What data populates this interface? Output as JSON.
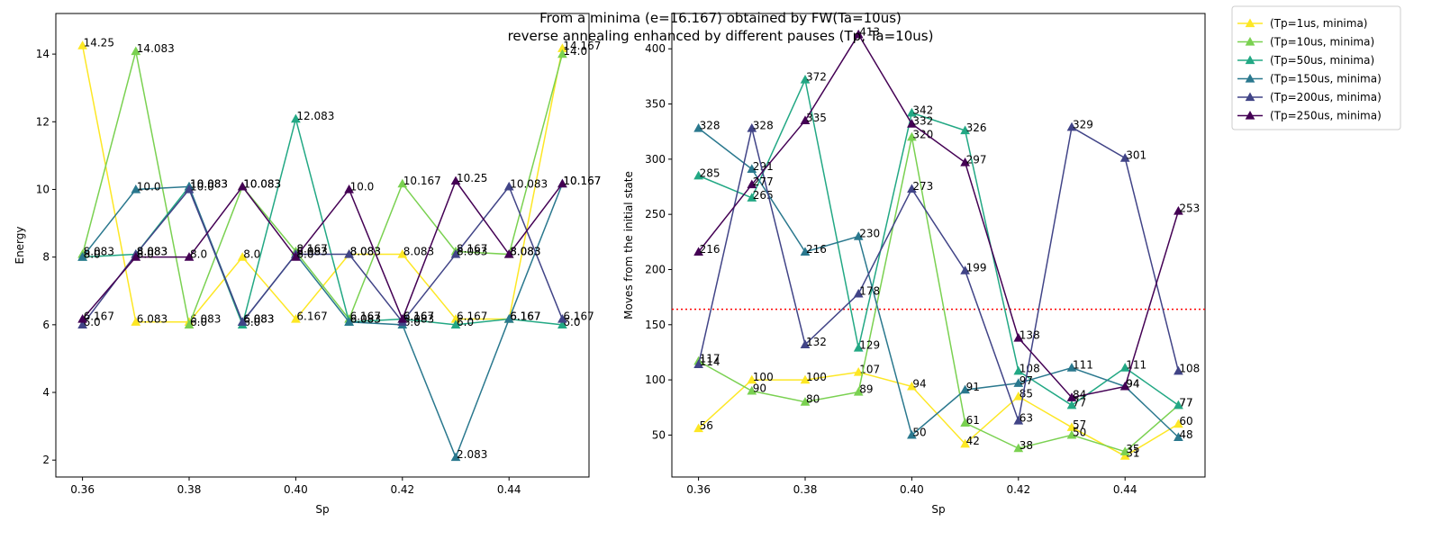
{
  "suptitle": {
    "line1": "From a minima (e=16.167) obtained by FW(Ta=10us)",
    "line2": "reverse annealing enhanced by different pauses (Tp, Ta=10us)"
  },
  "colors": [
    "#fde725",
    "#7ad151",
    "#22a884",
    "#2a788e",
    "#414487",
    "#440154"
  ],
  "reference_line": {
    "y": 164,
    "color": "#ff0000",
    "style": "dotted"
  },
  "chart_data": [
    {
      "type": "line",
      "xlabel": "Sp",
      "ylabel": "Energy",
      "x": [
        0.36,
        0.37,
        0.38,
        0.39,
        0.4,
        0.41,
        0.42,
        0.43,
        0.44,
        0.45
      ],
      "xlim": [
        0.355,
        0.455
      ],
      "ylim": [
        1.5,
        15.2
      ],
      "xticks": [
        "0.36",
        "0.38",
        "0.40",
        "0.42",
        "0.44"
      ],
      "yticks": [
        "2",
        "4",
        "6",
        "8",
        "10",
        "12",
        "14"
      ],
      "series": [
        {
          "name": "(Tp=1us, minima)",
          "values": [
            14.25,
            6.083,
            6.083,
            8.0,
            6.167,
            8.083,
            8.083,
            6.167,
            6.167,
            14.167
          ],
          "labels": [
            "14.25",
            "6.083",
            "6.083",
            "8.0",
            "6.167",
            "8.083",
            "8.083",
            "6.167",
            "6.167",
            "14.167"
          ]
        },
        {
          "name": "(Tp=10us, minima)",
          "values": [
            8.083,
            14.083,
            6.0,
            10.083,
            8.167,
            6.167,
            10.167,
            8.167,
            8.083,
            14.0
          ],
          "labels": [
            "8.083",
            "14.083",
            "6.0",
            "10.083",
            "8.167",
            "6.167",
            "10.167",
            "8.167",
            "8.083",
            "14.0"
          ]
        },
        {
          "name": "(Tp=50us, minima)",
          "values": [
            8.0,
            8.083,
            10.083,
            6.0,
            12.083,
            6.083,
            6.167,
            6.0,
            6.167,
            6.0
          ],
          "labels": [
            "8.0",
            "8.083",
            "10.083",
            "6.0",
            "12.083",
            "6.083",
            "6.167",
            "6.0",
            "6.167",
            "6.0"
          ]
        },
        {
          "name": "(Tp=150us, minima)",
          "values": [
            8.0,
            10.0,
            10.083,
            6.083,
            8.083,
            6.083,
            6.0,
            2.083,
            6.167,
            10.167
          ],
          "labels": [
            "8.0",
            "10.0",
            "10.083",
            "6.083",
            "8.083",
            "6.083",
            "6.0",
            "2.083",
            "6.167",
            "10.167"
          ]
        },
        {
          "name": "(Tp=200us, minima)",
          "values": [
            6.0,
            8.083,
            10.0,
            6.083,
            8.083,
            8.083,
            6.083,
            8.083,
            10.083,
            6.167
          ],
          "labels": [
            "6.0",
            "8.083",
            "10.0",
            "6.083",
            "8.083",
            "8.083",
            "6.083",
            "8.083",
            "10.083",
            "6.167"
          ]
        },
        {
          "name": "(Tp=250us, minima)",
          "values": [
            6.167,
            8.0,
            8.0,
            10.083,
            8.0,
            10.0,
            6.167,
            10.25,
            8.083,
            10.167
          ],
          "labels": [
            "6.167",
            "8.0",
            "8.0",
            "10.083",
            "8.0",
            "10.0",
            "6.167",
            "10.25",
            "8.083",
            "10.167"
          ]
        }
      ]
    },
    {
      "type": "line",
      "xlabel": "Sp",
      "ylabel": "Moves from the initial state",
      "x": [
        0.36,
        0.37,
        0.38,
        0.39,
        0.4,
        0.41,
        0.42,
        0.43,
        0.44,
        0.45
      ],
      "xlim": [
        0.355,
        0.455
      ],
      "ylim": [
        12,
        432
      ],
      "xticks": [
        "0.36",
        "0.38",
        "0.40",
        "0.42",
        "0.44"
      ],
      "yticks": [
        "50",
        "100",
        "150",
        "200",
        "250",
        "300",
        "350",
        "400"
      ],
      "series": [
        {
          "name": "(Tp=1us, minima)",
          "values": [
            56,
            100,
            100,
            107,
            94,
            42,
            85,
            57,
            31,
            60
          ],
          "labels": [
            "56",
            "100",
            "100",
            "107",
            "94",
            "42",
            "85",
            "57",
            "31",
            "60"
          ]
        },
        {
          "name": "(Tp=10us, minima)",
          "values": [
            117,
            90,
            80,
            89,
            320,
            61,
            38,
            50,
            35,
            77
          ],
          "labels": [
            "117",
            "90",
            "80",
            "89",
            "320",
            "61",
            "38",
            "50",
            "35",
            "77"
          ]
        },
        {
          "name": "(Tp=50us, minima)",
          "values": [
            285,
            265,
            372,
            129,
            342,
            326,
            108,
            77,
            111,
            77
          ],
          "labels": [
            "285",
            "265",
            "372",
            "129",
            "342",
            "326",
            "108",
            "77",
            "111",
            "77"
          ]
        },
        {
          "name": "(Tp=150us, minima)",
          "values": [
            328,
            291,
            216,
            230,
            50,
            91,
            97,
            111,
            94,
            48
          ],
          "labels": [
            "328",
            "291",
            "216",
            "230",
            "50",
            "91",
            "97",
            "111",
            "94",
            "48"
          ]
        },
        {
          "name": "(Tp=200us, minima)",
          "values": [
            114,
            328,
            132,
            178,
            273,
            199,
            63,
            329,
            301,
            108
          ],
          "labels": [
            "114",
            "328",
            "132",
            "178",
            "273",
            "199",
            "63",
            "329",
            "301",
            "108"
          ]
        },
        {
          "name": "(Tp=250us, minima)",
          "values": [
            216,
            277,
            335,
            413,
            332,
            297,
            138,
            84,
            94,
            253
          ],
          "labels": [
            "216",
            "277",
            "335",
            "413",
            "332",
            "297",
            "138",
            "84",
            "94",
            "253"
          ]
        }
      ]
    }
  ]
}
